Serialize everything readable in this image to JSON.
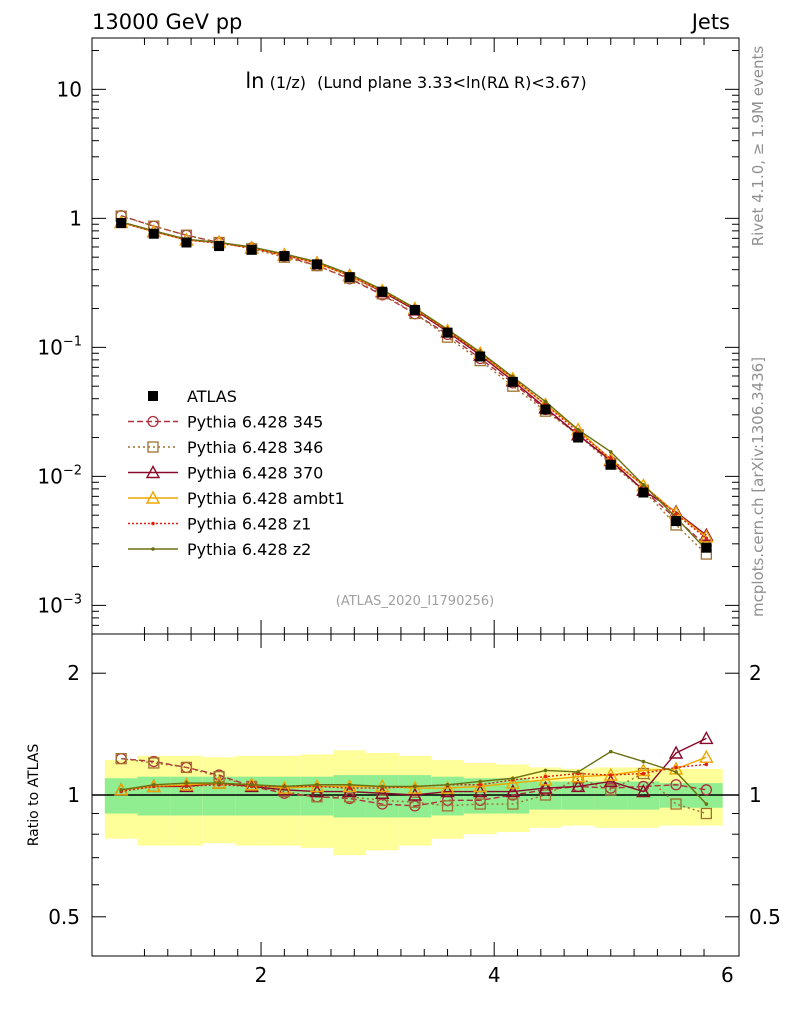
{
  "header": {
    "left_label": "13000 GeV pp",
    "right_label": "Jets"
  },
  "side_labels": {
    "rivet": "Rivet 4.1.0, ≥ 1.9M events",
    "mcplots": "mcplots.cern.ch [arXiv:1306.3436]"
  },
  "analysis_id": "(ATLAS_2020_I1790256)",
  "chart_data": [
    {
      "type": "line",
      "panel": "main",
      "title_prefix": "ln",
      "title_sub": "(1/z)",
      "title_rest": "(Lund plane 3.33<ln(RΔ R)<3.67)",
      "yscale": "log",
      "ylim": [
        0.0006,
        25
      ],
      "xlim": [
        0.55,
        6.1
      ],
      "yticks": [
        10,
        1,
        0.1,
        0.01,
        0.001
      ],
      "ytick_labels": [
        {
          "base": "10",
          "exp": ""
        },
        {
          "base": "1",
          "exp": ""
        },
        {
          "base": "10",
          "exp": "−1"
        },
        {
          "base": "10",
          "exp": "−2"
        },
        {
          "base": "10",
          "exp": "−3"
        }
      ],
      "x": [
        0.8,
        1.08,
        1.36,
        1.64,
        1.92,
        2.2,
        2.48,
        2.76,
        3.04,
        3.32,
        3.6,
        3.88,
        4.16,
        4.44,
        4.72,
        5.0,
        5.28,
        5.56,
        5.82
      ],
      "series": [
        {
          "name": "ATLAS",
          "color": "#000000",
          "marker": "square-filled",
          "dash": "",
          "values": [
            0.92,
            0.76,
            0.65,
            0.61,
            0.57,
            0.51,
            0.44,
            0.35,
            0.27,
            0.195,
            0.13,
            0.085,
            0.054,
            0.033,
            0.02,
            0.0123,
            0.0075,
            0.0045,
            0.0028
          ]
        },
        {
          "name": "Pythia 6.428 345",
          "color": "#b03040",
          "marker": "circle-open",
          "dash": "6,3",
          "values": [
            1.05,
            0.87,
            0.74,
            0.65,
            0.59,
            0.51,
            0.43,
            0.34,
            0.255,
            0.182,
            0.126,
            0.082,
            0.053,
            0.033,
            0.021,
            0.013,
            0.0078,
            0.0047,
            0.0029
          ]
        },
        {
          "name": "Pythia 6.428 346",
          "color": "#a07030",
          "marker": "square-open",
          "dash": "2,3",
          "values": [
            1.04,
            0.87,
            0.74,
            0.65,
            0.58,
            0.5,
            0.43,
            0.345,
            0.26,
            0.183,
            0.12,
            0.079,
            0.05,
            0.032,
            0.021,
            0.0125,
            0.0078,
            0.0042,
            0.0025
          ]
        },
        {
          "name": "Pythia 6.428 370",
          "color": "#8b0a2a",
          "marker": "triangle-open",
          "dash": "",
          "values": [
            0.93,
            0.79,
            0.68,
            0.65,
            0.59,
            0.52,
            0.45,
            0.36,
            0.27,
            0.195,
            0.132,
            0.087,
            0.055,
            0.034,
            0.021,
            0.0133,
            0.0078,
            0.0053,
            0.0035
          ]
        },
        {
          "name": "Pythia 6.428 ambt1",
          "color": "#f0a500",
          "marker": "triangle-open",
          "dash": "",
          "values": [
            0.93,
            0.79,
            0.68,
            0.65,
            0.59,
            0.52,
            0.45,
            0.36,
            0.275,
            0.2,
            0.135,
            0.09,
            0.057,
            0.036,
            0.023,
            0.0135,
            0.0085,
            0.0052,
            0.0034
          ]
        },
        {
          "name": "Pythia 6.428 z1",
          "color": "#e02010",
          "marker": "dot",
          "dash": "2,2",
          "values": [
            0.93,
            0.79,
            0.68,
            0.64,
            0.59,
            0.52,
            0.45,
            0.36,
            0.275,
            0.2,
            0.135,
            0.09,
            0.058,
            0.036,
            0.022,
            0.0137,
            0.0085,
            0.0051,
            0.0033
          ]
        },
        {
          "name": "Pythia 6.428 z2",
          "color": "#6b7010",
          "marker": "dot",
          "dash": "",
          "values": [
            0.94,
            0.8,
            0.69,
            0.65,
            0.6,
            0.53,
            0.46,
            0.37,
            0.28,
            0.202,
            0.138,
            0.092,
            0.059,
            0.038,
            0.023,
            0.0155,
            0.0086,
            0.0048,
            0.0027
          ]
        }
      ]
    },
    {
      "type": "line",
      "panel": "ratio",
      "ylabel": "Ratio to ATLAS",
      "yscale": "log",
      "ylim": [
        0.4,
        2.5
      ],
      "xlim": [
        0.55,
        6.1
      ],
      "yticks": [
        0.5,
        1,
        2
      ],
      "ytick_labels": [
        "0.5",
        "1",
        "2"
      ],
      "xticks": [
        2,
        4,
        6
      ],
      "xtick_labels": [
        "2",
        "4",
        "6"
      ],
      "band_inner": [
        0.1,
        0.11,
        0.11,
        0.11,
        0.11,
        0.11,
        0.11,
        0.12,
        0.12,
        0.12,
        0.11,
        0.1,
        0.1,
        0.08,
        0.08,
        0.08,
        0.08,
        0.07,
        0.07
      ],
      "band_outer": [
        0.22,
        0.25,
        0.25,
        0.24,
        0.25,
        0.25,
        0.26,
        0.29,
        0.27,
        0.25,
        0.22,
        0.2,
        0.19,
        0.17,
        0.16,
        0.17,
        0.17,
        0.16,
        0.16
      ],
      "series": [
        {
          "name": "Pythia 6.428 345",
          "values": [
            1.23,
            1.21,
            1.17,
            1.12,
            1.05,
            1.01,
            0.99,
            0.98,
            0.95,
            0.94,
            0.97,
            0.97,
            1.0,
            1.03,
            1.05,
            1.04,
            1.05,
            1.06,
            1.03
          ]
        },
        {
          "name": "Pythia 6.428 346",
          "values": [
            1.23,
            1.2,
            1.17,
            1.11,
            1.05,
            1.02,
            0.99,
            0.99,
            0.97,
            0.96,
            0.94,
            0.95,
            0.95,
            1.0,
            1.1,
            1.03,
            1.13,
            0.95,
            0.9
          ]
        },
        {
          "name": "Pythia 6.428 370",
          "values": [
            1.03,
            1.05,
            1.05,
            1.07,
            1.05,
            1.03,
            1.02,
            1.02,
            1.01,
            1.0,
            1.02,
            1.02,
            1.02,
            1.04,
            1.05,
            1.08,
            1.02,
            1.27,
            1.38
          ]
        },
        {
          "name": "Pythia 6.428 ambt1",
          "values": [
            1.03,
            1.05,
            1.06,
            1.07,
            1.06,
            1.04,
            1.05,
            1.05,
            1.05,
            1.04,
            1.04,
            1.05,
            1.07,
            1.09,
            1.11,
            1.12,
            1.15,
            1.16,
            1.24
          ]
        },
        {
          "name": "Pythia 6.428 z1",
          "values": [
            1.02,
            1.05,
            1.05,
            1.06,
            1.05,
            1.05,
            1.05,
            1.04,
            1.04,
            1.05,
            1.06,
            1.06,
            1.09,
            1.11,
            1.13,
            1.12,
            1.13,
            1.17,
            1.19
          ]
        },
        {
          "name": "Pythia 6.428 z2",
          "values": [
            1.03,
            1.06,
            1.07,
            1.07,
            1.06,
            1.05,
            1.06,
            1.06,
            1.05,
            1.05,
            1.06,
            1.08,
            1.1,
            1.15,
            1.14,
            1.28,
            1.21,
            1.14,
            0.95
          ]
        }
      ]
    }
  ]
}
